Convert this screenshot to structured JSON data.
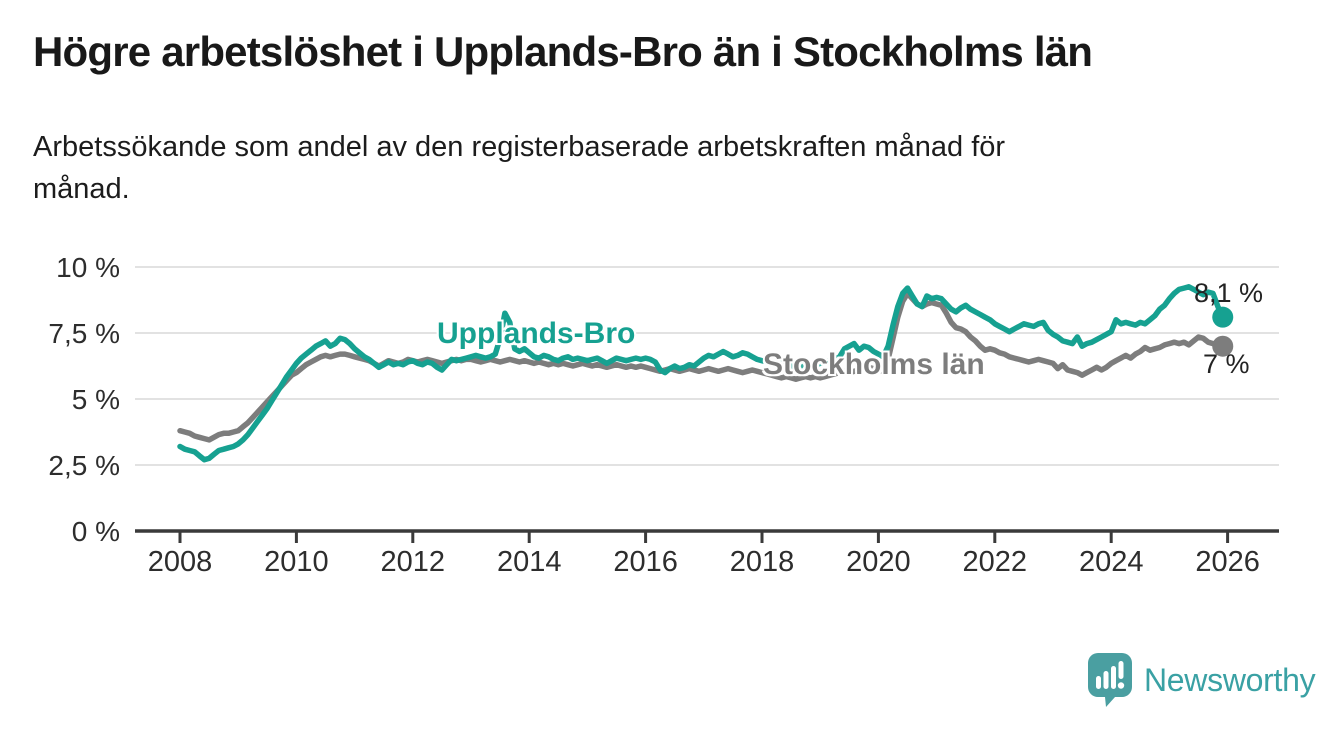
{
  "header": {
    "title": "Högre arbetslöshet i Upplands-Bro än i Stockholms län",
    "subtitle": "Arbetssökande som andel av den registerbaserade arbetskraften månad för månad."
  },
  "footer": {
    "brand": "Newsworthy",
    "logo_icon": "bar-chart-speech-bubble",
    "icon_color": "#4a9fa1",
    "brand_color": "#3aa1a4"
  },
  "chart_data": {
    "type": "line",
    "title": "Högre arbetslöshet i Upplands-Bro än i Stockholms län",
    "unit": "%",
    "grid": true,
    "grid_color": "#d9d9d9",
    "axis_color": "#3a3a3a",
    "tick_label_color": "#2d2d2d",
    "x_axis": {
      "ticks": [
        2008,
        2010,
        2012,
        2014,
        2016,
        2018,
        2020,
        2022,
        2024,
        2026
      ],
      "range": [
        2007.2,
        2026.9
      ]
    },
    "y_axis": {
      "range": [
        0,
        10
      ],
      "ticks": [
        {
          "value": 0,
          "label": "0 %"
        },
        {
          "value": 2.5,
          "label": "2,5 %"
        },
        {
          "value": 5,
          "label": "5 %"
        },
        {
          "value": 7.5,
          "label": "7,5 %"
        },
        {
          "value": 10,
          "label": "10 %"
        }
      ]
    },
    "series": [
      {
        "name": "Upplands-Bro",
        "color": "#16a191",
        "end_label": "8,1 %",
        "end_value": 8.1,
        "start_year": 2008,
        "interval_months": 1,
        "values": [
          3.2,
          3.1,
          3.05,
          3.0,
          2.85,
          2.7,
          2.75,
          2.9,
          3.05,
          3.1,
          3.15,
          3.2,
          3.3,
          3.45,
          3.65,
          3.9,
          4.15,
          4.4,
          4.65,
          4.95,
          5.25,
          5.55,
          5.85,
          6.1,
          6.35,
          6.55,
          6.7,
          6.85,
          7.0,
          7.1,
          7.2,
          7.0,
          7.1,
          7.3,
          7.25,
          7.1,
          6.9,
          6.75,
          6.6,
          6.5,
          6.35,
          6.2,
          6.3,
          6.4,
          6.3,
          6.35,
          6.3,
          6.4,
          6.45,
          6.35,
          6.3,
          6.4,
          6.35,
          6.2,
          6.1,
          6.3,
          6.5,
          6.45,
          6.5,
          6.55,
          6.6,
          6.65,
          6.6,
          6.55,
          6.6,
          6.7,
          7.3,
          8.25,
          7.9,
          6.9,
          6.8,
          6.9,
          6.75,
          6.6,
          6.55,
          6.65,
          6.6,
          6.5,
          6.45,
          6.55,
          6.6,
          6.5,
          6.55,
          6.5,
          6.45,
          6.5,
          6.55,
          6.45,
          6.35,
          6.45,
          6.55,
          6.5,
          6.45,
          6.5,
          6.55,
          6.5,
          6.55,
          6.5,
          6.4,
          6.1,
          6.0,
          6.15,
          6.25,
          6.15,
          6.2,
          6.3,
          6.25,
          6.4,
          6.55,
          6.65,
          6.6,
          6.7,
          6.8,
          6.7,
          6.6,
          6.65,
          6.75,
          6.7,
          6.6,
          6.5,
          6.45,
          6.4,
          6.35,
          6.3,
          6.35,
          6.3,
          6.25,
          6.2,
          6.25,
          6.3,
          6.25,
          6.3,
          6.35,
          6.4,
          6.45,
          6.5,
          6.6,
          6.9,
          7.0,
          7.1,
          6.85,
          7.0,
          6.95,
          6.8,
          6.7,
          6.6,
          7.0,
          7.8,
          8.5,
          9.0,
          9.2,
          8.9,
          8.6,
          8.5,
          8.9,
          8.8,
          8.85,
          8.8,
          8.6,
          8.4,
          8.3,
          8.45,
          8.55,
          8.4,
          8.3,
          8.2,
          8.1,
          8.0,
          7.85,
          7.75,
          7.65,
          7.55,
          7.65,
          7.75,
          7.85,
          7.8,
          7.75,
          7.85,
          7.9,
          7.6,
          7.45,
          7.35,
          7.2,
          7.15,
          7.1,
          7.35,
          7.0,
          7.1,
          7.15,
          7.25,
          7.35,
          7.45,
          7.55,
          8.0,
          7.85,
          7.9,
          7.85,
          7.8,
          7.9,
          7.85,
          8.0,
          8.15,
          8.4,
          8.55,
          8.8,
          9.0,
          9.15,
          9.2,
          9.25,
          9.15,
          9.05,
          8.95,
          9.05,
          9.0,
          8.5,
          8.1
        ]
      },
      {
        "name": "Stockholms län",
        "color": "#7d7d7d",
        "end_label": "7 %",
        "end_value": 7.0,
        "start_year": 2008,
        "interval_months": 1,
        "values": [
          3.8,
          3.75,
          3.7,
          3.6,
          3.55,
          3.5,
          3.45,
          3.55,
          3.65,
          3.7,
          3.7,
          3.75,
          3.8,
          3.95,
          4.1,
          4.3,
          4.5,
          4.7,
          4.9,
          5.1,
          5.3,
          5.5,
          5.7,
          5.9,
          6.0,
          6.15,
          6.3,
          6.4,
          6.5,
          6.6,
          6.65,
          6.6,
          6.65,
          6.7,
          6.7,
          6.65,
          6.6,
          6.55,
          6.5,
          6.45,
          6.35,
          6.25,
          6.35,
          6.45,
          6.4,
          6.35,
          6.4,
          6.5,
          6.45,
          6.4,
          6.45,
          6.5,
          6.45,
          6.4,
          6.35,
          6.4,
          6.45,
          6.5,
          6.45,
          6.5,
          6.5,
          6.45,
          6.4,
          6.45,
          6.5,
          6.45,
          6.4,
          6.45,
          6.5,
          6.45,
          6.4,
          6.45,
          6.4,
          6.35,
          6.4,
          6.35,
          6.3,
          6.35,
          6.3,
          6.35,
          6.3,
          6.25,
          6.3,
          6.35,
          6.3,
          6.25,
          6.3,
          6.25,
          6.2,
          6.25,
          6.3,
          6.25,
          6.2,
          6.25,
          6.2,
          6.25,
          6.2,
          6.15,
          6.1,
          6.05,
          6.1,
          6.15,
          6.1,
          6.05,
          6.1,
          6.15,
          6.1,
          6.05,
          6.1,
          6.15,
          6.1,
          6.05,
          6.1,
          6.15,
          6.1,
          6.05,
          6.0,
          6.05,
          6.1,
          6.05,
          6.0,
          5.95,
          5.9,
          5.85,
          5.8,
          5.85,
          5.8,
          5.75,
          5.8,
          5.85,
          5.8,
          5.85,
          5.8,
          5.85,
          5.9,
          5.95,
          6.0,
          6.05,
          6.0,
          6.05,
          6.1,
          6.15,
          6.2,
          6.15,
          6.1,
          6.05,
          6.5,
          7.3,
          8.1,
          8.7,
          9.0,
          8.8,
          8.6,
          8.5,
          8.6,
          8.65,
          8.6,
          8.55,
          8.25,
          7.9,
          7.7,
          7.65,
          7.55,
          7.35,
          7.2,
          7.0,
          6.85,
          6.9,
          6.85,
          6.75,
          6.7,
          6.6,
          6.55,
          6.5,
          6.45,
          6.4,
          6.45,
          6.5,
          6.45,
          6.4,
          6.35,
          6.15,
          6.3,
          6.1,
          6.05,
          6.0,
          5.9,
          6.0,
          6.1,
          6.2,
          6.1,
          6.2,
          6.35,
          6.45,
          6.55,
          6.65,
          6.55,
          6.7,
          6.8,
          6.95,
          6.85,
          6.9,
          6.95,
          7.05,
          7.1,
          7.15,
          7.1,
          7.15,
          7.05,
          7.2,
          7.35,
          7.3,
          7.15,
          7.1,
          7.0,
          7.0
        ]
      }
    ]
  }
}
